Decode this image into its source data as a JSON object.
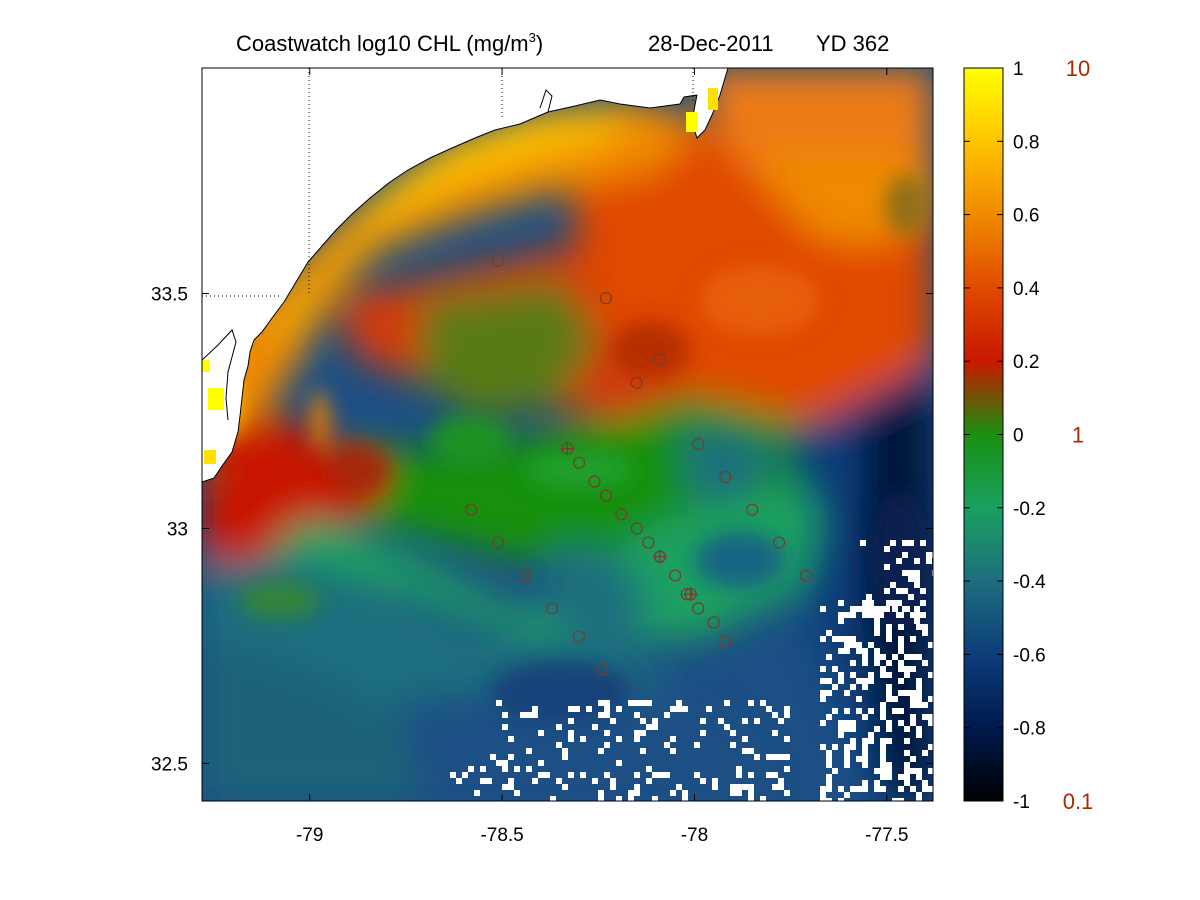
{
  "title": {
    "main": "Coastwatch  log10  CHL (mg/m",
    "sup": "3",
    "close": ")",
    "date": "28-Dec-2011",
    "yearday": "YD 362"
  },
  "axes": {
    "x_ticks": [
      {
        "value": -79,
        "label": "-79"
      },
      {
        "value": -78.5,
        "label": "-78.5"
      },
      {
        "value": -78,
        "label": "-78"
      },
      {
        "value": -77.5,
        "label": "-77.5"
      }
    ],
    "y_ticks": [
      {
        "value": 33.5,
        "label": "33.5"
      },
      {
        "value": 33,
        "label": "33"
      },
      {
        "value": 32.5,
        "label": "32.5"
      }
    ],
    "xlim": [
      -79.28,
      -77.38
    ],
    "ylim": [
      32.42,
      33.98
    ]
  },
  "colorbar": {
    "ticks": [
      "1",
      "0.8",
      "0.6",
      "0.4",
      "0.2",
      "0",
      "-0.2",
      "-0.4",
      "-0.6",
      "-0.8",
      "-1"
    ],
    "tick_values": [
      1,
      0.8,
      0.6,
      0.4,
      0.2,
      0,
      -0.2,
      -0.4,
      -0.6,
      -0.8,
      -1
    ],
    "range": [
      -1,
      1
    ],
    "right_labels": [
      {
        "value": 1,
        "label": "10"
      },
      {
        "value": 0,
        "label": "1"
      },
      {
        "value": -1,
        "label": "0.1"
      }
    ]
  },
  "colors": {
    "station_marker": "#7a3a2a",
    "right_label": "#aa2a00",
    "coast": "#000000"
  },
  "stations": {
    "circles": [
      [
        -78.51,
        33.57
      ],
      [
        -78.15,
        33.31
      ],
      [
        -77.99,
        33.18
      ],
      [
        -77.92,
        33.11
      ],
      [
        -78.58,
        33.04
      ],
      [
        -78.51,
        32.97
      ],
      [
        -78.44,
        32.9
      ],
      [
        -78.37,
        32.83
      ],
      [
        -78.3,
        32.77
      ],
      [
        -78.24,
        32.7
      ],
      [
        -78.3,
        33.14
      ],
      [
        -78.26,
        33.1
      ],
      [
        -78.23,
        33.07
      ],
      [
        -78.19,
        33.03
      ],
      [
        -78.15,
        33.0
      ],
      [
        -78.12,
        32.97
      ],
      [
        -78.09,
        32.94
      ],
      [
        -78.05,
        32.9
      ],
      [
        -78.02,
        32.86
      ],
      [
        -77.99,
        32.83
      ],
      [
        -77.95,
        32.8
      ],
      [
        -77.92,
        32.76
      ],
      [
        -77.85,
        33.04
      ],
      [
        -77.78,
        32.97
      ],
      [
        -77.71,
        32.9
      ],
      [
        -78.23,
        33.49
      ],
      [
        -78.09,
        33.36
      ]
    ],
    "crosses": [
      [
        -78.33,
        33.17
      ],
      [
        -78.09,
        32.94
      ],
      [
        -78.01,
        32.86
      ]
    ]
  },
  "chart_data": {
    "type": "heatmap",
    "title": "Coastwatch  log10  CHL (mg/m3)",
    "subtitle": "28-Dec-2011     YD 362",
    "xlabel": "",
    "ylabel": "",
    "x_ticks": [
      -79,
      -78.5,
      -78,
      -77.5
    ],
    "y_ticks": [
      32.5,
      33,
      33.5
    ],
    "xlim": [
      -79.28,
      -77.38
    ],
    "ylim": [
      32.42,
      33.98
    ],
    "colorbar_range": [
      -1,
      1
    ],
    "colorbar_ticks": [
      1,
      0.8,
      0.6,
      0.4,
      0.2,
      0,
      -0.2,
      -0.4,
      -0.6,
      -0.8,
      -1
    ],
    "colorbar_secondary_labels": [
      "10",
      "1",
      "0.1"
    ],
    "grid": "dotted reference lines at -79, -78.5, -78 and 33.5",
    "colormap": "black-blue-teal-green-red-orange-yellow (log10 chlorophyll)"
  }
}
